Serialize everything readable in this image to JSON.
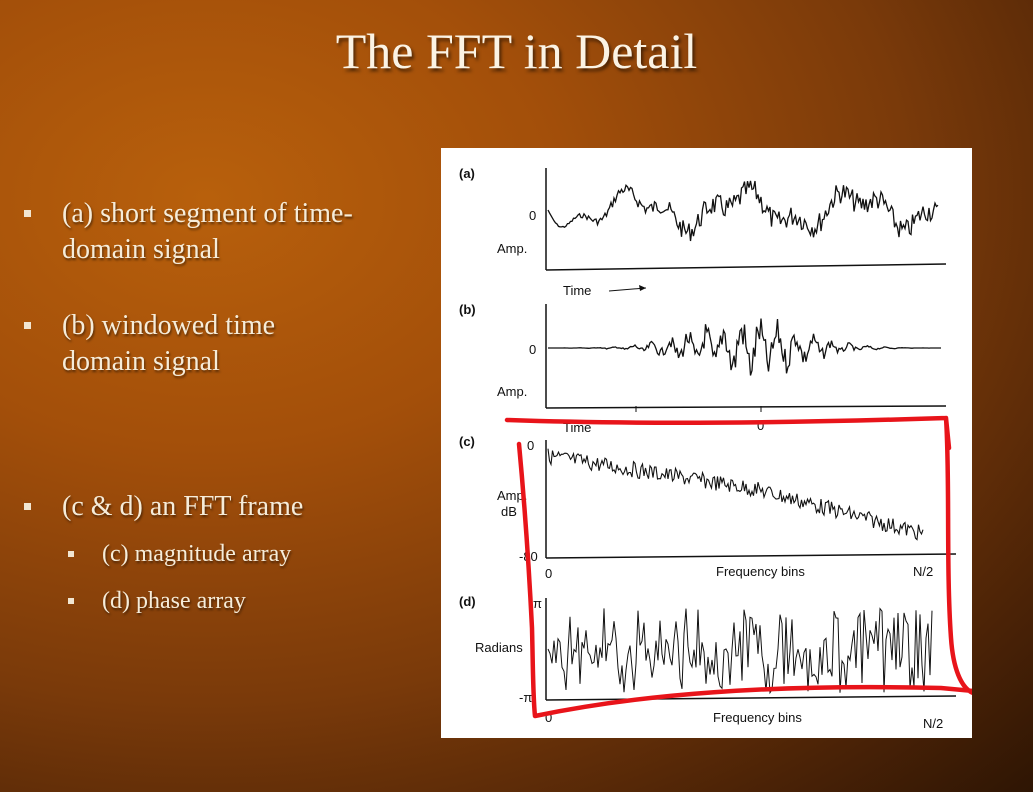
{
  "title": "The FFT in Detail",
  "bullets": [
    {
      "line1": "(a) short segment of time-",
      "line2": "domain signal"
    },
    {
      "line1": "(b) windowed time",
      "line2": "domain signal"
    },
    {
      "line1": "(c & d) an FFT frame"
    }
  ],
  "sub_bullets": [
    "(c) magnitude array",
    "(d) phase array"
  ],
  "figure": {
    "panel_a": {
      "tag": "(a)",
      "zero": "0",
      "ylabel": "Amp.",
      "xlabel": "Time"
    },
    "panel_b": {
      "tag": "(b)",
      "zero": "0",
      "ylabel": "Amp.",
      "xlabel": "Time",
      "xtick": "0"
    },
    "panel_c": {
      "tag": "(c)",
      "ytop": "0",
      "ylabel1": "Amp.",
      "ylabel2": "dB",
      "ybottom": "-80",
      "x0": "0",
      "xlabel": "Frequency bins",
      "xend": "N/2"
    },
    "panel_d": {
      "tag": "(d)",
      "ytop": "π",
      "ylabel": "Radians",
      "ybottom": "-π",
      "x0": "0",
      "xlabel": "Frequency bins",
      "xend": "N/2"
    }
  },
  "annotation_color": "#e8141a"
}
